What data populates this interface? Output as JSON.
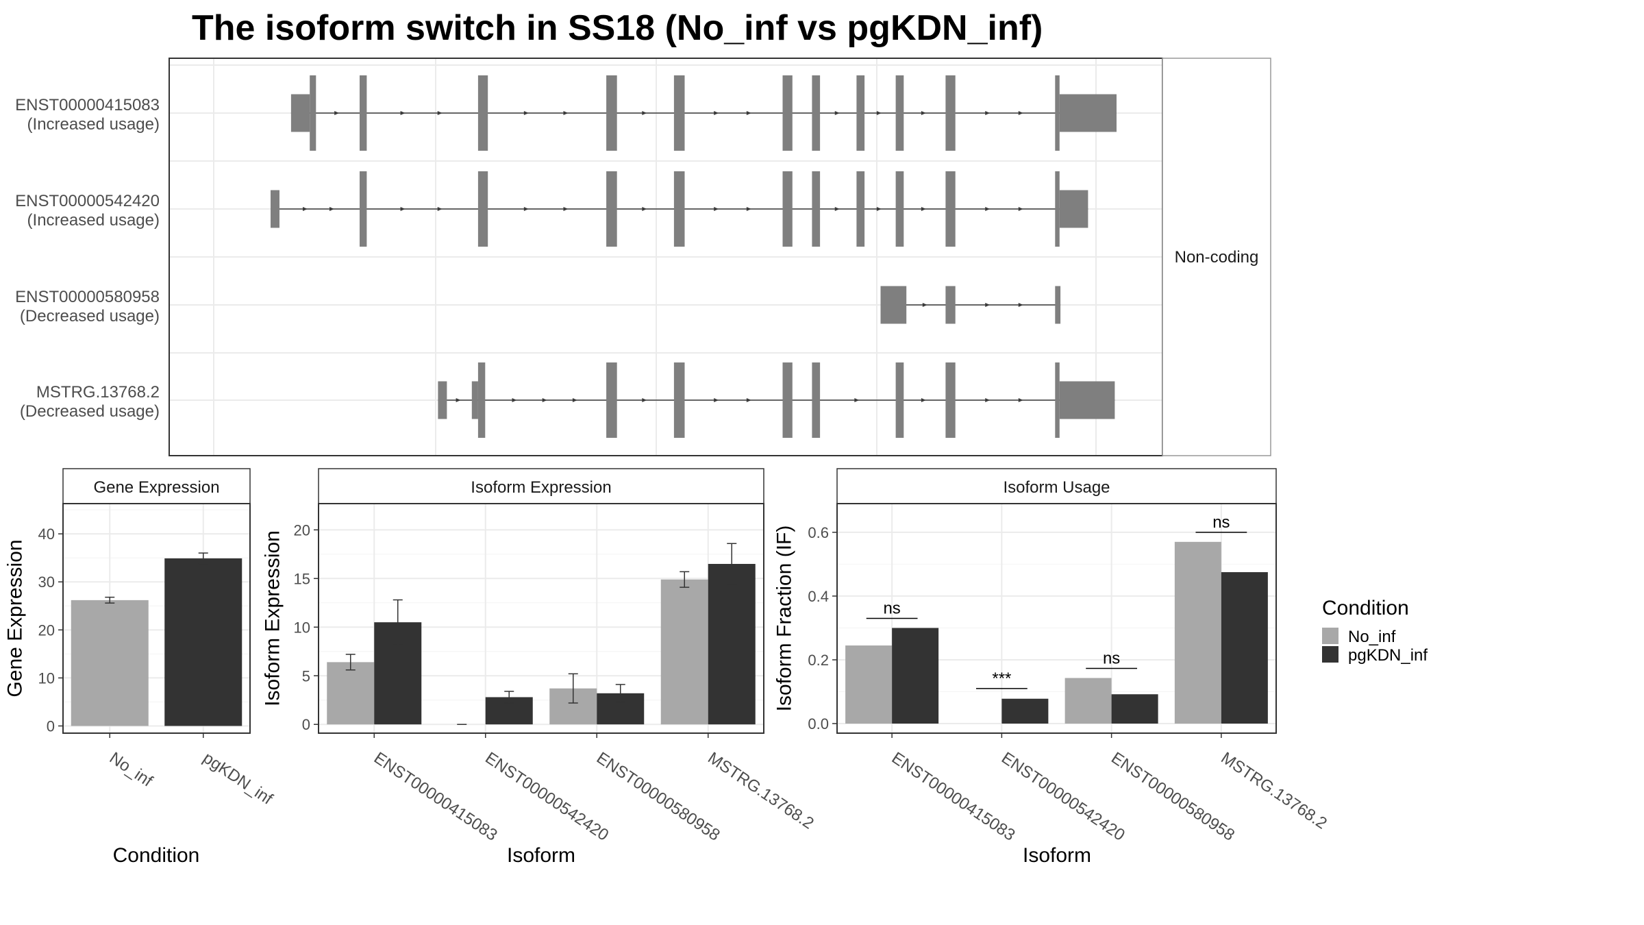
{
  "title": "The isoform switch in SS18 (No_inf vs pgKDN_inf)",
  "colors": {
    "no_inf": "#a8a8a8",
    "pgkdn_inf": "#333333",
    "exon": "#7f7f7f",
    "intron": "#3a3a3a",
    "grid": "#ebebeb"
  },
  "chart_data": [
    {
      "type": "gene-structure",
      "strip_label": "Non-coding",
      "isoforms": [
        {
          "id": "ENST00000415083",
          "usage": "(Increased usage)",
          "exons": [
            [
              0.073,
              0.094,
              "utr"
            ],
            [
              0.094,
              0.101,
              "cds"
            ],
            [
              0.15,
              0.158,
              "cds"
            ],
            [
              0.283,
              0.294,
              "cds"
            ],
            [
              0.427,
              0.439,
              "cds"
            ],
            [
              0.503,
              0.515,
              "cds"
            ],
            [
              0.625,
              0.636,
              "cds"
            ],
            [
              0.658,
              0.667,
              "cds"
            ],
            [
              0.708,
              0.717,
              "cds"
            ],
            [
              0.752,
              0.761,
              "cds"
            ],
            [
              0.808,
              0.819,
              "cds"
            ],
            [
              0.931,
              0.936,
              "cds"
            ],
            [
              0.936,
              1.0,
              "utr"
            ]
          ]
        },
        {
          "id": "ENST00000542420",
          "usage": "(Increased usage)",
          "exons": [
            [
              0.05,
              0.06,
              "utr"
            ],
            [
              0.15,
              0.158,
              "cds"
            ],
            [
              0.283,
              0.294,
              "cds"
            ],
            [
              0.427,
              0.439,
              "cds"
            ],
            [
              0.503,
              0.515,
              "cds"
            ],
            [
              0.625,
              0.636,
              "cds"
            ],
            [
              0.658,
              0.667,
              "cds"
            ],
            [
              0.708,
              0.717,
              "cds"
            ],
            [
              0.752,
              0.761,
              "cds"
            ],
            [
              0.808,
              0.819,
              "cds"
            ],
            [
              0.931,
              0.936,
              "cds"
            ],
            [
              0.936,
              0.968,
              "utr"
            ]
          ]
        },
        {
          "id": "ENST00000580958",
          "usage": "(Decreased usage)",
          "exons": [
            [
              0.735,
              0.764,
              "utr"
            ],
            [
              0.808,
              0.819,
              "utr"
            ],
            [
              0.931,
              0.937,
              "utr"
            ]
          ]
        },
        {
          "id": "MSTRG.13768.2",
          "usage": "(Decreased usage)",
          "exons": [
            [
              0.238,
              0.248,
              "utr"
            ],
            [
              0.276,
              0.283,
              "utr"
            ],
            [
              0.283,
              0.291,
              "cds"
            ],
            [
              0.427,
              0.439,
              "cds"
            ],
            [
              0.503,
              0.515,
              "cds"
            ],
            [
              0.625,
              0.636,
              "cds"
            ],
            [
              0.658,
              0.667,
              "cds"
            ],
            [
              0.752,
              0.761,
              "cds"
            ],
            [
              0.808,
              0.819,
              "cds"
            ],
            [
              0.931,
              0.936,
              "cds"
            ],
            [
              0.936,
              0.998,
              "utr"
            ]
          ]
        }
      ]
    },
    {
      "type": "bar",
      "strip_label": "Gene Expression",
      "xlabel": "Condition",
      "ylabel": "Gene Expression",
      "categories": [
        "No_inf",
        "pgKDN_inf"
      ],
      "values": [
        26.2,
        34.9
      ],
      "errors": [
        0.6,
        1.1
      ],
      "yticks": [
        0,
        10,
        20,
        30,
        40
      ],
      "ylim": [
        -1.5,
        46.3
      ]
    },
    {
      "type": "bar",
      "strip_label": "Isoform Expression",
      "xlabel": "Isoform",
      "ylabel": "Isoform Expression",
      "categories": [
        "ENST00000415083",
        "ENST00000542420",
        "ENST00000580958",
        "MSTRG.13768.2"
      ],
      "series": [
        {
          "name": "No_inf",
          "values": [
            6.4,
            0.0,
            3.7,
            14.9
          ],
          "errors": [
            0.8,
            0.0,
            1.5,
            0.8
          ]
        },
        {
          "name": "pgKDN_inf",
          "values": [
            10.5,
            2.8,
            3.2,
            16.5
          ],
          "errors": [
            2.3,
            0.6,
            0.9,
            2.1
          ]
        }
      ],
      "yticks": [
        0,
        5,
        10,
        15,
        20
      ],
      "ylim": [
        -0.9,
        22.7
      ]
    },
    {
      "type": "bar",
      "strip_label": "Isoform Usage",
      "xlabel": "Isoform",
      "ylabel": "Isoform Fraction (IF)",
      "categories": [
        "ENST00000415083",
        "ENST00000542420",
        "ENST00000580958",
        "MSTRG.13768.2"
      ],
      "series": [
        {
          "name": "No_inf",
          "values": [
            0.245,
            0.0,
            0.143,
            0.57
          ]
        },
        {
          "name": "pgKDN_inf",
          "values": [
            0.3,
            0.078,
            0.092,
            0.475
          ]
        }
      ],
      "significance": [
        "ns",
        "***",
        "ns",
        "ns"
      ],
      "sig_y": [
        0.33,
        0.11,
        0.173,
        0.6
      ],
      "yticks": [
        0.0,
        0.2,
        0.4,
        0.6
      ],
      "yticklabels": [
        "0.0",
        "0.2",
        "0.4",
        "0.6"
      ],
      "ylim": [
        -0.03,
        0.69
      ]
    }
  ],
  "legend": {
    "title": "Condition",
    "entries": [
      {
        "label": "No_inf",
        "color": "#a8a8a8"
      },
      {
        "label": "pgKDN_inf",
        "color": "#333333"
      }
    ]
  }
}
